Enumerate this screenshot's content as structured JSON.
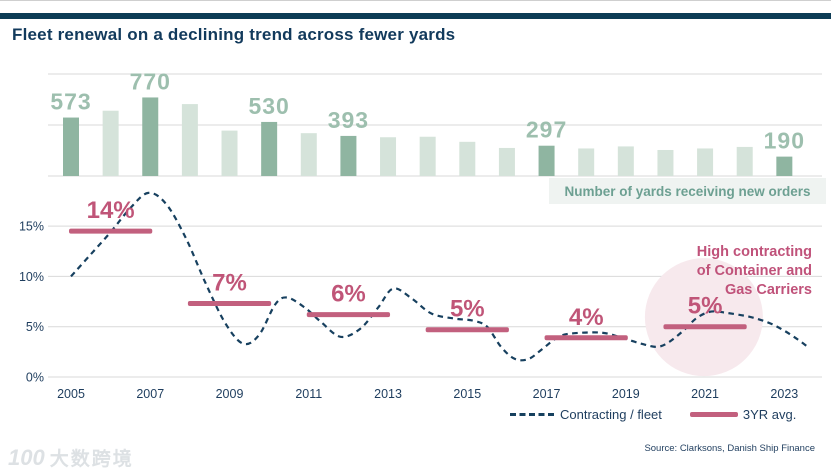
{
  "header": {
    "title": "Fleet renewal on a declining trend across fewer yards"
  },
  "bar_label_box": {
    "label": "Number of yards receiving new orders"
  },
  "annotation": {
    "lines": [
      "High contracting",
      "of Container and",
      "Gas Carriers"
    ]
  },
  "legend": {
    "line_label": "Contracting / fleet",
    "avg_label": "3YR avg."
  },
  "source": "Source: Clarksons, Danish Ship Finance",
  "watermark": {
    "logo": "100",
    "text": "大数跨境"
  },
  "colors": {
    "navy": "#123a5c",
    "tick": "#1e3d5e",
    "line": "#17405f",
    "bar_dark": "#8fb5a1",
    "bar_light": "#d5e3da",
    "bar_value_label": "#9dbfae",
    "pink_bar": "#c2607e",
    "pink_text": "#c05578",
    "annotation_pink": "#c0527a",
    "highlight_circle": "#f7e9ed",
    "grid": "#d9d9d9",
    "box_bg": "#eff3f1",
    "box_text": "#6da092",
    "top_bar": "#0d3c55"
  },
  "chart_data": {
    "type": "combo",
    "bar_series": {
      "name": "Number of yards receiving new orders",
      "years": [
        2005,
        2006,
        2007,
        2008,
        2009,
        2010,
        2011,
        2012,
        2013,
        2014,
        2015,
        2016,
        2017,
        2018,
        2019,
        2020,
        2021,
        2022,
        2023
      ],
      "values": [
        573,
        640,
        770,
        705,
        445,
        530,
        420,
        393,
        380,
        385,
        335,
        275,
        297,
        270,
        290,
        255,
        270,
        285,
        190
      ],
      "value_labels": [
        "573",
        null,
        "770",
        null,
        null,
        "530",
        null,
        "393",
        null,
        null,
        null,
        null,
        "297",
        null,
        null,
        null,
        null,
        null,
        "190"
      ],
      "axis_gridline_values": [
        0,
        500,
        1000
      ],
      "axis_max": 1000
    },
    "line_series": {
      "name": "Contracting / fleet",
      "unit": "%",
      "points": [
        [
          2005.0,
          10.0
        ],
        [
          2005.5,
          12.2
        ],
        [
          2006.0,
          14.4
        ],
        [
          2006.5,
          16.8
        ],
        [
          2006.95,
          18.3
        ],
        [
          2007.4,
          17.2
        ],
        [
          2007.9,
          13.8
        ],
        [
          2008.4,
          9.3
        ],
        [
          2008.9,
          5.3
        ],
        [
          2009.35,
          3.3
        ],
        [
          2009.75,
          4.2
        ],
        [
          2010.15,
          7.2
        ],
        [
          2010.45,
          7.9
        ],
        [
          2010.9,
          6.9
        ],
        [
          2011.3,
          5.5
        ],
        [
          2011.8,
          4.0
        ],
        [
          2012.3,
          4.8
        ],
        [
          2012.75,
          6.9
        ],
        [
          2013.13,
          8.8
        ],
        [
          2013.6,
          7.8
        ],
        [
          2014.1,
          6.3
        ],
        [
          2014.7,
          5.8
        ],
        [
          2015.15,
          5.6
        ],
        [
          2015.5,
          5.0
        ],
        [
          2015.85,
          3.0
        ],
        [
          2016.2,
          1.8
        ],
        [
          2016.55,
          1.8
        ],
        [
          2016.9,
          2.8
        ],
        [
          2017.3,
          4.0
        ],
        [
          2017.7,
          4.35
        ],
        [
          2018.4,
          4.4
        ],
        [
          2018.9,
          3.9
        ],
        [
          2019.4,
          3.3
        ],
        [
          2019.8,
          3.0
        ],
        [
          2020.1,
          3.5
        ],
        [
          2020.45,
          4.6
        ],
        [
          2020.8,
          5.9
        ],
        [
          2021.15,
          6.5
        ],
        [
          2021.5,
          6.4
        ],
        [
          2022.1,
          6.0
        ],
        [
          2022.6,
          5.4
        ],
        [
          2023.0,
          4.6
        ],
        [
          2023.35,
          3.7
        ],
        [
          2023.62,
          2.9
        ]
      ]
    },
    "avg_series": {
      "name": "3YR avg.",
      "bars": [
        {
          "label": "14%",
          "from": 2005,
          "to": 2007,
          "level": 14.5
        },
        {
          "label": "7%",
          "from": 2008,
          "to": 2010,
          "level": 7.3
        },
        {
          "label": "6%",
          "from": 2011,
          "to": 2013,
          "level": 6.2
        },
        {
          "label": "5%",
          "from": 2014,
          "to": 2016,
          "level": 4.7
        },
        {
          "label": "4%",
          "from": 2017,
          "to": 2019,
          "level": 3.9
        },
        {
          "label": "5%",
          "from": 2020,
          "to": 2022,
          "level": 5.0
        }
      ]
    },
    "highlight": {
      "center_year": 2020.97,
      "center_pct": 5.95,
      "radius_px": 59
    },
    "x_axis": {
      "ticks": [
        "2005",
        "2007",
        "2009",
        "2011",
        "2013",
        "2015",
        "2017",
        "2019",
        "2021",
        "2023"
      ]
    },
    "y_axis": {
      "tick_labels": [
        "0%",
        "5%",
        "10%",
        "15%"
      ],
      "tick_values": [
        0,
        5,
        10,
        15
      ],
      "max": 15
    }
  }
}
